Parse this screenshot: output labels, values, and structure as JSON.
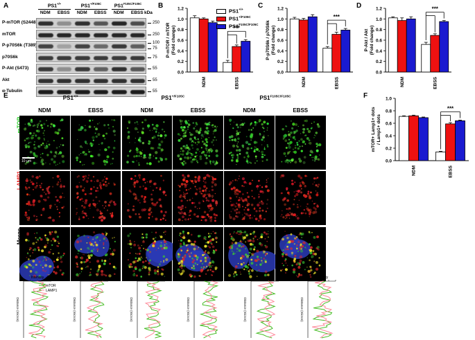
{
  "panels": {
    "A": "A",
    "B": "B",
    "C": "C",
    "D": "D",
    "E": "E",
    "F": "F"
  },
  "blot": {
    "groups": [
      {
        "label": "PS1",
        "sup": "+/+"
      },
      {
        "label": "PS1",
        "sup": "+/F105C"
      },
      {
        "label": "PS1",
        "sup": "F105C/F105C"
      }
    ],
    "lane_labels": [
      "NDM",
      "EBSS",
      "NDM",
      "EBSS",
      "NDM",
      "EBSS"
    ],
    "kda_header": "kDa",
    "rows": [
      {
        "name": "P-mTOR (S2448)",
        "markers": [
          "250"
        ],
        "intensity": [
          0.8,
          0.3,
          0.8,
          0.6,
          0.85,
          0.65
        ]
      },
      {
        "name": "mTOR",
        "markers": [
          "250"
        ],
        "intensity": [
          0.85,
          0.85,
          0.85,
          0.85,
          0.85,
          0.85
        ]
      },
      {
        "name": "P-p70S6k (T389)",
        "markers": [
          "100",
          "75"
        ],
        "intensity": [
          0.7,
          0.2,
          0.7,
          0.5,
          0.75,
          0.55
        ]
      },
      {
        "name": "p70S6k",
        "markers": [
          "75"
        ],
        "intensity": [
          0.75,
          0.75,
          0.75,
          0.75,
          0.75,
          0.75
        ]
      },
      {
        "name": "P-Akt (S473)",
        "markers": [
          "55"
        ],
        "intensity": [
          0.75,
          0.3,
          0.75,
          0.55,
          0.8,
          0.6
        ]
      },
      {
        "name": "Akt",
        "markers": [
          "55"
        ],
        "intensity": [
          0.8,
          0.8,
          0.8,
          0.8,
          0.8,
          0.8
        ]
      },
      {
        "name": "α-Tubulin",
        "markers": [
          "55"
        ],
        "intensity": [
          0.9,
          0.9,
          0.9,
          0.9,
          0.9,
          0.9
        ]
      }
    ]
  },
  "legend": [
    {
      "label": "PS1",
      "sup": "+/+",
      "color": "#ffffff"
    },
    {
      "label": "PS1",
      "sup": "+/F105C",
      "color": "#ee1111"
    },
    {
      "label": "PS1",
      "sup": "F105C/F105C",
      "color": "#1a1ad0"
    }
  ],
  "chart_data": [
    {
      "panel": "B",
      "type": "bar",
      "categories": [
        "NDM",
        "EBSS"
      ],
      "series": [
        {
          "values": [
            1.02,
            0.18
          ],
          "errors": [
            0.04,
            0.04
          ]
        },
        {
          "values": [
            1.0,
            0.48
          ],
          "errors": [
            0.02,
            0.03
          ]
        },
        {
          "values": [
            0.93,
            0.58
          ],
          "errors": [
            0.03,
            0.03
          ]
        }
      ],
      "ylabel": "P-mTOR / mTOR\n(Fold change)",
      "ylim": [
        0,
        1.2
      ],
      "yticks": [
        "0.0",
        "0.2",
        "0.4",
        "0.6",
        "0.8",
        "1.0",
        "1.2"
      ],
      "significance": "***"
    },
    {
      "panel": "C",
      "type": "bar",
      "categories": [
        "NDM",
        "EBSS"
      ],
      "series": [
        {
          "values": [
            1.0,
            0.45
          ],
          "errors": [
            0.03,
            0.03
          ]
        },
        {
          "values": [
            0.98,
            0.71
          ],
          "errors": [
            0.03,
            0.04
          ]
        },
        {
          "values": [
            1.04,
            0.79
          ],
          "errors": [
            0.04,
            0.03
          ]
        }
      ],
      "ylabel": "P-p70S6k / p70S6k\n(Fold change)",
      "ylim": [
        0,
        1.2
      ],
      "yticks": [
        "0.0",
        "0.2",
        "0.4",
        "0.6",
        "0.8",
        "1.0",
        "1.2"
      ],
      "significance": "***"
    },
    {
      "panel": "D",
      "type": "bar",
      "categories": [
        "NDM",
        "EBSS"
      ],
      "series": [
        {
          "values": [
            1.02,
            0.52
          ],
          "errors": [
            0.02,
            0.04
          ]
        },
        {
          "values": [
            0.97,
            0.69
          ],
          "errors": [
            0.05,
            0.03
          ]
        },
        {
          "values": [
            1.0,
            0.95
          ],
          "errors": [
            0.04,
            0.02
          ]
        }
      ],
      "ylabel": "P-Akt / Akt\n(Fold change)",
      "ylim": [
        0,
        1.2
      ],
      "yticks": [
        "0.0",
        "0.2",
        "0.4",
        "0.6",
        "0.8",
        "1.0",
        "1.2"
      ],
      "significance": "***"
    },
    {
      "panel": "F",
      "type": "bar",
      "categories": [
        "NDM",
        "EBSS"
      ],
      "series": [
        {
          "values": [
            0.71,
            0.14
          ],
          "errors": [
            0.01,
            0.01
          ]
        },
        {
          "values": [
            0.72,
            0.59
          ],
          "errors": [
            0.01,
            0.02
          ]
        },
        {
          "values": [
            0.69,
            0.64
          ],
          "errors": [
            0.01,
            0.01
          ]
        }
      ],
      "ylabel": "mTOR+ Lamp1+ dots\n/ Lamp1+ dots",
      "ylim": [
        0,
        1.0
      ],
      "yticks": [
        "0.0",
        "0.2",
        "0.4",
        "0.6",
        "0.8",
        "1.0"
      ],
      "significance": "***"
    }
  ],
  "micro": {
    "groups": [
      {
        "label": "PS1",
        "sup": "+/+"
      },
      {
        "label": "PS1",
        "sup": "+/F105C"
      },
      {
        "label": "PS1",
        "sup": "F105C/F105C"
      }
    ],
    "cols": [
      "NDM",
      "EBSS",
      "NDM",
      "EBSS",
      "NDM",
      "EBSS"
    ],
    "rows": [
      {
        "label": "mTOR",
        "color": "#22cc22"
      },
      {
        "label": "LAMP1",
        "color": "#ee2222"
      },
      {
        "label": "Merge",
        "color": "#000000"
      }
    ],
    "scale_label": "10 μm",
    "density": [
      [
        0.5,
        0.3,
        0.4,
        0.9,
        0.6,
        0.5
      ],
      [
        0.4,
        0.5,
        0.3,
        0.85,
        0.6,
        0.5
      ],
      [
        0.5,
        0.5,
        0.5,
        0.9,
        0.8,
        0.6
      ]
    ]
  },
  "profiles": {
    "axis_label": "Intensity",
    "dist_label": "Distance (micron)",
    "legend": [
      {
        "label": "mTOR",
        "color": "#44bb22"
      },
      {
        "label": "LAMP1",
        "color": "#ff8899"
      }
    ]
  }
}
